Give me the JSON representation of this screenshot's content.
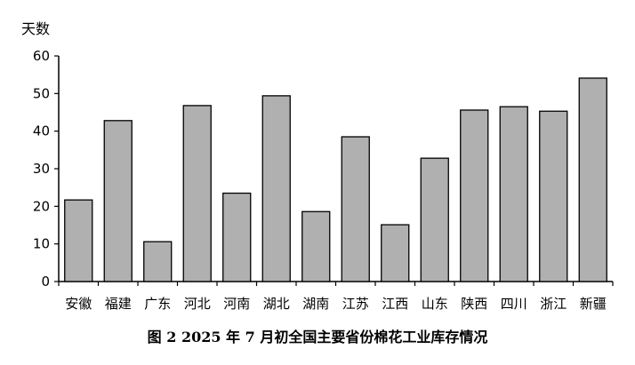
{
  "caption": "图 2   2025 年 7 月初全国主要省份棉花工业库存情况",
  "chart_data": {
    "type": "bar",
    "title": "",
    "ylabel": "天数",
    "xlabel": "",
    "categories": [
      "安徽",
      "福建",
      "广东",
      "河北",
      "河南",
      "湖北",
      "湖南",
      "江苏",
      "江西",
      "山东",
      "陕西",
      "四川",
      "浙江",
      "新疆"
    ],
    "values": [
      21.7,
      42.8,
      10.6,
      46.8,
      23.5,
      49.4,
      18.6,
      38.5,
      15.1,
      32.8,
      45.6,
      46.5,
      45.3,
      54.1
    ],
    "ylim": [
      0,
      60
    ],
    "yticks": [
      0,
      10,
      20,
      30,
      40,
      50,
      60
    ],
    "grid": false,
    "legend": "none",
    "bar_color": "#b0b0b0",
    "bar_edge_color": "#000000"
  }
}
